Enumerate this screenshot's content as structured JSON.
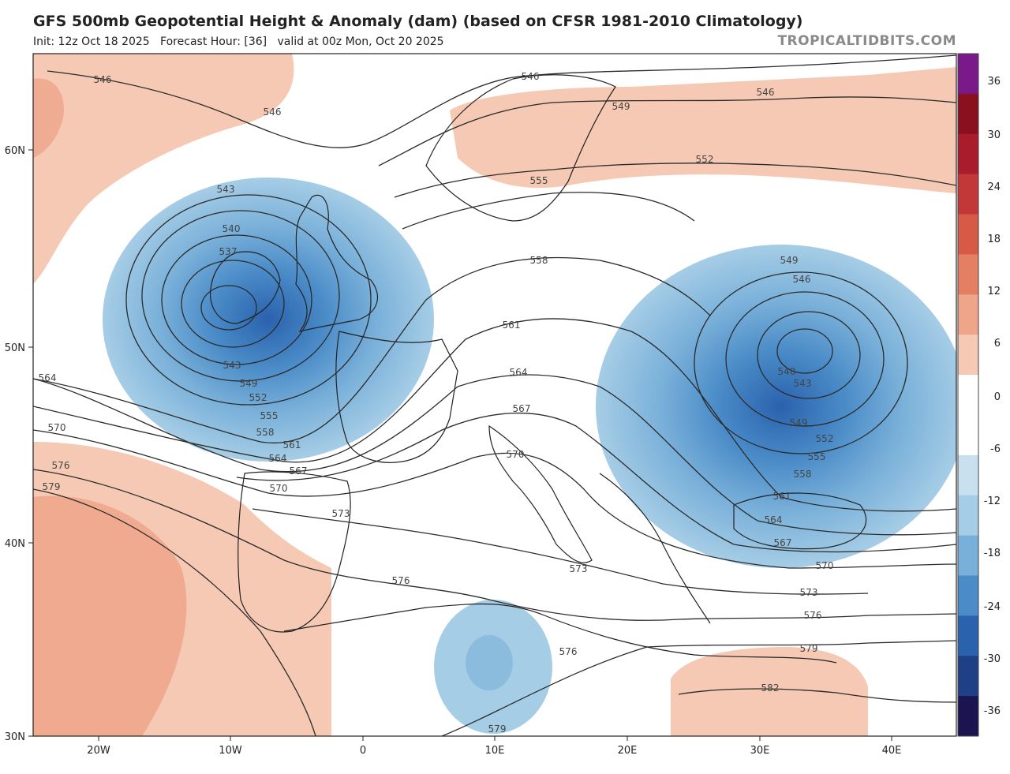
{
  "header": {
    "title": "GFS 500mb Geopotential Height & Anomaly (dam) (based on CFSR 1981-2010 Climatology)",
    "subtitle": "Init: 12z Oct 18 2025   Forecast Hour: [36]   valid at 00z Mon, Oct 20 2025",
    "brand": "TROPICALTIDBITS.COM"
  },
  "axes": {
    "lat_labels": [
      "60N",
      "50N",
      "40N",
      "30N"
    ],
    "lon_labels": [
      "20W",
      "10W",
      "0",
      "10E",
      "20E",
      "30E",
      "40E"
    ]
  },
  "colorbar": {
    "labels": [
      "36",
      "30",
      "24",
      "18",
      "12",
      "6",
      "0",
      "-6",
      "-12",
      "-18",
      "-24",
      "-30",
      "-36"
    ],
    "colors": [
      "#1a1450",
      "#1f3f86",
      "#2a62ad",
      "#4b8cc8",
      "#79b0d9",
      "#a6cde6",
      "#c9e0ef",
      "#ffffff",
      "#ffffff",
      "#f5c9b3",
      "#eea589",
      "#e47f63",
      "#d65a45",
      "#c23838",
      "#a81c2c",
      "#8a1020",
      "#7a1a8a"
    ]
  },
  "contour_labels": [
    {
      "text": "546"
    },
    {
      "text": "546"
    },
    {
      "text": "546"
    },
    {
      "text": "549"
    },
    {
      "text": "546"
    },
    {
      "text": "552"
    },
    {
      "text": "555"
    },
    {
      "text": "543"
    },
    {
      "text": "540"
    },
    {
      "text": "537"
    },
    {
      "text": "543"
    },
    {
      "text": "549"
    },
    {
      "text": "552"
    },
    {
      "text": "555"
    },
    {
      "text": "558"
    },
    {
      "text": "561"
    },
    {
      "text": "564"
    },
    {
      "text": "567"
    },
    {
      "text": "570"
    },
    {
      "text": "573"
    },
    {
      "text": "576"
    },
    {
      "text": "564"
    },
    {
      "text": "570"
    },
    {
      "text": "576"
    },
    {
      "text": "579"
    },
    {
      "text": "558"
    },
    {
      "text": "561"
    },
    {
      "text": "564"
    },
    {
      "text": "567"
    },
    {
      "text": "570"
    },
    {
      "text": "573"
    },
    {
      "text": "576"
    },
    {
      "text": "579"
    },
    {
      "text": "549"
    },
    {
      "text": "546"
    },
    {
      "text": "540"
    },
    {
      "text": "543"
    },
    {
      "text": "549"
    },
    {
      "text": "552"
    },
    {
      "text": "555"
    },
    {
      "text": "558"
    },
    {
      "text": "561"
    },
    {
      "text": "564"
    },
    {
      "text": "567"
    },
    {
      "text": "570"
    },
    {
      "text": "573"
    },
    {
      "text": "576"
    },
    {
      "text": "579"
    },
    {
      "text": "582"
    }
  ]
}
